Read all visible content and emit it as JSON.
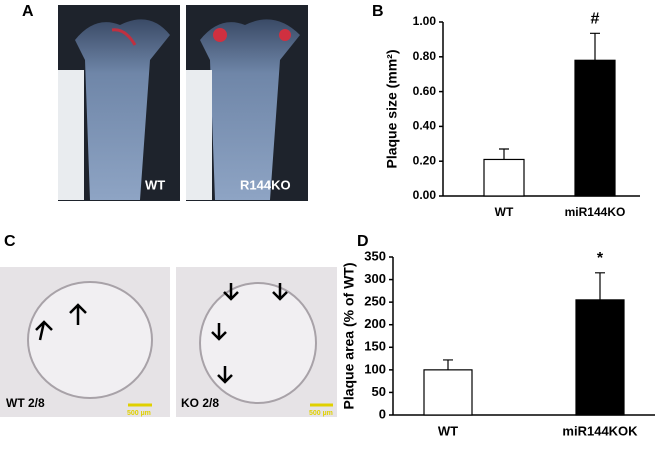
{
  "panel_labels": [
    "A",
    "B",
    "C",
    "D"
  ],
  "images": [
    {
      "label": "WT"
    },
    {
      "label": "R144KO"
    },
    {
      "label": "WT 2/8",
      "scale": "500 µm"
    },
    {
      "label": "KO 2/8",
      "scale": "500 µm"
    }
  ],
  "chart_data": [
    {
      "type": "bar",
      "y_label": "Plaque size (mm²)",
      "categories": [
        "WT",
        "miR144KO"
      ],
      "values": [
        0.21,
        0.78
      ],
      "errors": [
        0.06,
        0.155
      ],
      "annotations": [
        null,
        "#"
      ],
      "colors": [
        "#ffffff",
        "#000000"
      ],
      "ylim": [
        0,
        1.0
      ],
      "yticks": [
        {
          "value": 0,
          "label": "0.00"
        },
        {
          "value": 0.2,
          "label": "0.20"
        },
        {
          "value": 0.4,
          "label": "0.40"
        },
        {
          "value": 0.6,
          "label": "0.60"
        },
        {
          "value": 0.8,
          "label": "0.80"
        },
        {
          "value": 1.0,
          "label": "1.00"
        }
      ]
    },
    {
      "type": "bar",
      "y_label": "Plaque area (% of WT)",
      "categories": [
        "WT",
        "miR144KOK"
      ],
      "values": [
        100,
        255
      ],
      "errors": [
        22,
        60
      ],
      "annotations": [
        null,
        "*"
      ],
      "colors": [
        "#ffffff",
        "#000000"
      ],
      "ylim": [
        0,
        350
      ],
      "yticks": [
        0,
        50,
        100,
        150,
        200,
        250,
        300,
        350
      ]
    }
  ]
}
